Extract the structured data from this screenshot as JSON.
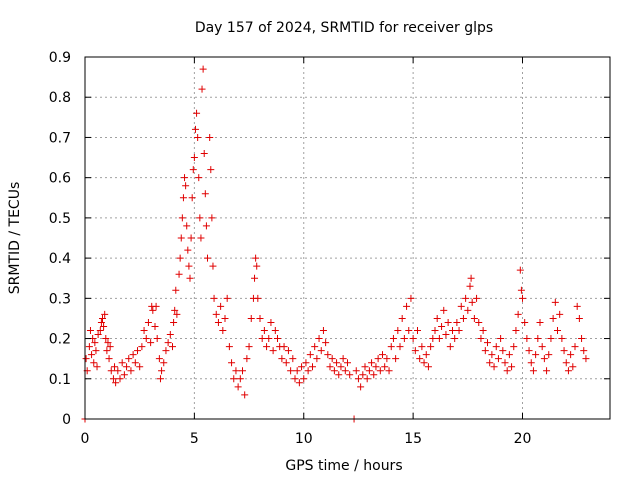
{
  "chart_data": {
    "type": "scatter",
    "title": "Day 157 of 2024, SRMTID for receiver glps",
    "xlabel": "GPS time / hours",
    "ylabel": "SRMTID / TECUs",
    "xlim": [
      0,
      24
    ],
    "ylim": [
      0,
      0.9
    ],
    "x_ticks": [
      0,
      5,
      10,
      15,
      20
    ],
    "y_ticks": [
      0,
      0.1,
      0.2,
      0.3,
      0.4,
      0.5,
      0.6,
      0.7,
      0.8,
      0.9
    ],
    "x_tick_labels": [
      "0",
      "5",
      "10",
      "15",
      "20"
    ],
    "y_tick_labels": [
      "0",
      "0.1",
      "0.2",
      "0.3",
      "0.4",
      "0.5",
      "0.6",
      "0.7",
      "0.8",
      "0.9"
    ],
    "grid": true,
    "marker": "+",
    "color": "#e00000",
    "series": [
      {
        "name": "SRMTID",
        "points": [
          [
            0.0,
            0.0
          ],
          [
            0.05,
            0.15
          ],
          [
            0.1,
            0.12
          ],
          [
            0.2,
            0.18
          ],
          [
            0.25,
            0.22
          ],
          [
            0.3,
            0.16
          ],
          [
            0.35,
            0.2
          ],
          [
            0.4,
            0.14
          ],
          [
            0.45,
            0.19
          ],
          [
            0.5,
            0.17
          ],
          [
            0.55,
            0.13
          ],
          [
            0.6,
            0.21
          ],
          [
            0.7,
            0.22
          ],
          [
            0.75,
            0.24
          ],
          [
            0.8,
            0.25
          ],
          [
            0.85,
            0.23
          ],
          [
            0.9,
            0.26
          ],
          [
            0.95,
            0.2
          ],
          [
            1.0,
            0.17
          ],
          [
            1.05,
            0.19
          ],
          [
            1.1,
            0.15
          ],
          [
            1.15,
            0.18
          ],
          [
            1.2,
            0.12
          ],
          [
            1.3,
            0.1
          ],
          [
            1.35,
            0.13
          ],
          [
            1.4,
            0.09
          ],
          [
            1.5,
            0.12
          ],
          [
            1.6,
            0.1
          ],
          [
            1.7,
            0.14
          ],
          [
            1.8,
            0.11
          ],
          [
            1.9,
            0.13
          ],
          [
            2.0,
            0.15
          ],
          [
            2.1,
            0.12
          ],
          [
            2.2,
            0.16
          ],
          [
            2.3,
            0.14
          ],
          [
            2.4,
            0.17
          ],
          [
            2.5,
            0.13
          ],
          [
            2.6,
            0.18
          ],
          [
            2.7,
            0.22
          ],
          [
            2.8,
            0.2
          ],
          [
            2.9,
            0.24
          ],
          [
            3.0,
            0.19
          ],
          [
            3.05,
            0.28
          ],
          [
            3.1,
            0.27
          ],
          [
            3.2,
            0.23
          ],
          [
            3.25,
            0.28
          ],
          [
            3.3,
            0.2
          ],
          [
            3.4,
            0.15
          ],
          [
            3.45,
            0.1
          ],
          [
            3.5,
            0.12
          ],
          [
            3.6,
            0.14
          ],
          [
            3.7,
            0.17
          ],
          [
            3.8,
            0.19
          ],
          [
            3.9,
            0.21
          ],
          [
            4.0,
            0.18
          ],
          [
            4.05,
            0.24
          ],
          [
            4.1,
            0.27
          ],
          [
            4.15,
            0.32
          ],
          [
            4.2,
            0.26
          ],
          [
            4.3,
            0.36
          ],
          [
            4.35,
            0.4
          ],
          [
            4.4,
            0.45
          ],
          [
            4.45,
            0.5
          ],
          [
            4.5,
            0.55
          ],
          [
            4.55,
            0.6
          ],
          [
            4.6,
            0.58
          ],
          [
            4.65,
            0.48
          ],
          [
            4.7,
            0.42
          ],
          [
            4.75,
            0.38
          ],
          [
            4.8,
            0.35
          ],
          [
            4.85,
            0.45
          ],
          [
            4.9,
            0.55
          ],
          [
            4.95,
            0.62
          ],
          [
            5.0,
            0.65
          ],
          [
            5.05,
            0.72
          ],
          [
            5.1,
            0.76
          ],
          [
            5.15,
            0.7
          ],
          [
            5.2,
            0.6
          ],
          [
            5.25,
            0.5
          ],
          [
            5.3,
            0.45
          ],
          [
            5.35,
            0.82
          ],
          [
            5.4,
            0.87
          ],
          [
            5.45,
            0.66
          ],
          [
            5.5,
            0.56
          ],
          [
            5.55,
            0.48
          ],
          [
            5.6,
            0.4
          ],
          [
            5.7,
            0.7
          ],
          [
            5.75,
            0.62
          ],
          [
            5.8,
            0.5
          ],
          [
            5.85,
            0.38
          ],
          [
            5.9,
            0.3
          ],
          [
            6.0,
            0.26
          ],
          [
            6.1,
            0.24
          ],
          [
            6.2,
            0.28
          ],
          [
            6.3,
            0.22
          ],
          [
            6.4,
            0.25
          ],
          [
            6.5,
            0.3
          ],
          [
            6.6,
            0.18
          ],
          [
            6.7,
            0.14
          ],
          [
            6.8,
            0.1
          ],
          [
            6.9,
            0.12
          ],
          [
            7.0,
            0.08
          ],
          [
            7.1,
            0.1
          ],
          [
            7.2,
            0.12
          ],
          [
            7.3,
            0.06
          ],
          [
            7.4,
            0.15
          ],
          [
            7.5,
            0.18
          ],
          [
            7.6,
            0.25
          ],
          [
            7.7,
            0.3
          ],
          [
            7.75,
            0.35
          ],
          [
            7.8,
            0.4
          ],
          [
            7.85,
            0.38
          ],
          [
            7.9,
            0.3
          ],
          [
            8.0,
            0.25
          ],
          [
            8.1,
            0.2
          ],
          [
            8.2,
            0.22
          ],
          [
            8.3,
            0.18
          ],
          [
            8.4,
            0.2
          ],
          [
            8.5,
            0.24
          ],
          [
            8.6,
            0.17
          ],
          [
            8.7,
            0.22
          ],
          [
            8.8,
            0.2
          ],
          [
            8.9,
            0.18
          ],
          [
            9.0,
            0.15
          ],
          [
            9.1,
            0.18
          ],
          [
            9.2,
            0.14
          ],
          [
            9.3,
            0.17
          ],
          [
            9.4,
            0.12
          ],
          [
            9.5,
            0.15
          ],
          [
            9.6,
            0.1
          ],
          [
            9.7,
            0.12
          ],
          [
            9.8,
            0.09
          ],
          [
            9.9,
            0.13
          ],
          [
            10.0,
            0.1
          ],
          [
            10.1,
            0.14
          ],
          [
            10.2,
            0.12
          ],
          [
            10.3,
            0.16
          ],
          [
            10.4,
            0.13
          ],
          [
            10.5,
            0.18
          ],
          [
            10.6,
            0.15
          ],
          [
            10.7,
            0.2
          ],
          [
            10.8,
            0.17
          ],
          [
            10.9,
            0.22
          ],
          [
            11.0,
            0.19
          ],
          [
            11.1,
            0.16
          ],
          [
            11.2,
            0.13
          ],
          [
            11.3,
            0.15
          ],
          [
            11.4,
            0.12
          ],
          [
            11.5,
            0.14
          ],
          [
            11.6,
            0.11
          ],
          [
            11.7,
            0.13
          ],
          [
            11.8,
            0.15
          ],
          [
            11.9,
            0.12
          ],
          [
            12.0,
            0.14
          ],
          [
            12.1,
            0.11
          ],
          [
            12.3,
            0.0
          ],
          [
            12.4,
            0.12
          ],
          [
            12.5,
            0.1
          ],
          [
            12.6,
            0.08
          ],
          [
            12.7,
            0.11
          ],
          [
            12.8,
            0.13
          ],
          [
            12.9,
            0.1
          ],
          [
            13.0,
            0.12
          ],
          [
            13.1,
            0.14
          ],
          [
            13.2,
            0.11
          ],
          [
            13.3,
            0.13
          ],
          [
            13.4,
            0.15
          ],
          [
            13.5,
            0.12
          ],
          [
            13.6,
            0.16
          ],
          [
            13.7,
            0.13
          ],
          [
            13.8,
            0.15
          ],
          [
            13.9,
            0.12
          ],
          [
            14.0,
            0.18
          ],
          [
            14.1,
            0.2
          ],
          [
            14.2,
            0.15
          ],
          [
            14.3,
            0.22
          ],
          [
            14.4,
            0.18
          ],
          [
            14.5,
            0.25
          ],
          [
            14.6,
            0.2
          ],
          [
            14.7,
            0.28
          ],
          [
            14.8,
            0.22
          ],
          [
            14.9,
            0.3
          ],
          [
            15.0,
            0.2
          ],
          [
            15.1,
            0.17
          ],
          [
            15.2,
            0.22
          ],
          [
            15.3,
            0.15
          ],
          [
            15.4,
            0.18
          ],
          [
            15.5,
            0.14
          ],
          [
            15.6,
            0.16
          ],
          [
            15.7,
            0.13
          ],
          [
            15.8,
            0.18
          ],
          [
            15.9,
            0.2
          ],
          [
            16.0,
            0.22
          ],
          [
            16.1,
            0.25
          ],
          [
            16.2,
            0.2
          ],
          [
            16.3,
            0.23
          ],
          [
            16.4,
            0.27
          ],
          [
            16.5,
            0.21
          ],
          [
            16.6,
            0.24
          ],
          [
            16.7,
            0.18
          ],
          [
            16.8,
            0.22
          ],
          [
            16.9,
            0.2
          ],
          [
            17.0,
            0.24
          ],
          [
            17.1,
            0.22
          ],
          [
            17.2,
            0.28
          ],
          [
            17.3,
            0.25
          ],
          [
            17.4,
            0.3
          ],
          [
            17.5,
            0.27
          ],
          [
            17.6,
            0.33
          ],
          [
            17.65,
            0.35
          ],
          [
            17.7,
            0.29
          ],
          [
            17.8,
            0.25
          ],
          [
            17.9,
            0.3
          ],
          [
            18.0,
            0.24
          ],
          [
            18.1,
            0.2
          ],
          [
            18.2,
            0.22
          ],
          [
            18.3,
            0.17
          ],
          [
            18.4,
            0.19
          ],
          [
            18.5,
            0.14
          ],
          [
            18.6,
            0.16
          ],
          [
            18.7,
            0.13
          ],
          [
            18.8,
            0.18
          ],
          [
            18.9,
            0.15
          ],
          [
            19.0,
            0.2
          ],
          [
            19.1,
            0.17
          ],
          [
            19.2,
            0.14
          ],
          [
            19.3,
            0.12
          ],
          [
            19.4,
            0.16
          ],
          [
            19.5,
            0.13
          ],
          [
            19.6,
            0.18
          ],
          [
            19.7,
            0.22
          ],
          [
            19.8,
            0.26
          ],
          [
            19.9,
            0.37
          ],
          [
            19.95,
            0.32
          ],
          [
            20.0,
            0.3
          ],
          [
            20.1,
            0.24
          ],
          [
            20.2,
            0.2
          ],
          [
            20.3,
            0.17
          ],
          [
            20.4,
            0.14
          ],
          [
            20.5,
            0.12
          ],
          [
            20.6,
            0.16
          ],
          [
            20.7,
            0.2
          ],
          [
            20.8,
            0.24
          ],
          [
            20.9,
            0.18
          ],
          [
            21.0,
            0.15
          ],
          [
            21.1,
            0.12
          ],
          [
            21.2,
            0.16
          ],
          [
            21.3,
            0.2
          ],
          [
            21.4,
            0.25
          ],
          [
            21.5,
            0.29
          ],
          [
            21.6,
            0.22
          ],
          [
            21.7,
            0.26
          ],
          [
            21.8,
            0.2
          ],
          [
            21.9,
            0.17
          ],
          [
            22.0,
            0.14
          ],
          [
            22.1,
            0.12
          ],
          [
            22.2,
            0.16
          ],
          [
            22.3,
            0.13
          ],
          [
            22.4,
            0.18
          ],
          [
            22.5,
            0.28
          ],
          [
            22.6,
            0.25
          ],
          [
            22.7,
            0.2
          ],
          [
            22.8,
            0.17
          ],
          [
            22.9,
            0.15
          ]
        ]
      }
    ]
  }
}
